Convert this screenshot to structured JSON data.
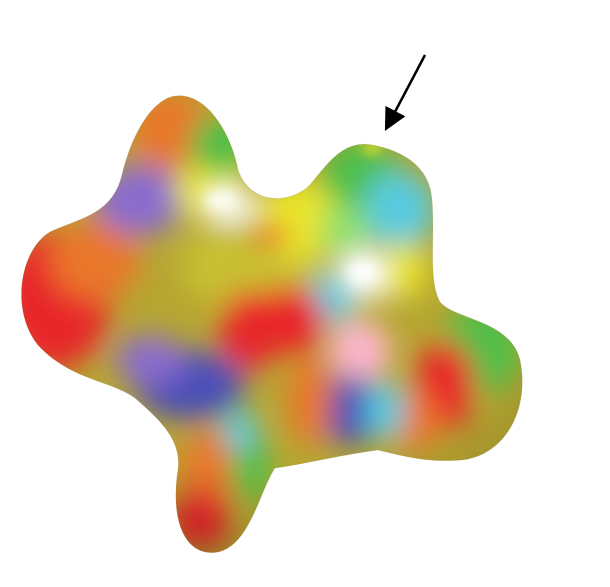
{
  "figure": {
    "subject": "blob-surface",
    "background_color": "#ffffff",
    "palette": {
      "red": "#e8262b",
      "orange": "#e9772a",
      "yellow": "#e9e52a",
      "green": "#4dbf4a",
      "cyan": "#58cbe0",
      "blue": "#4b4fb8",
      "violet": "#8a6ccf",
      "white": "#ffffff",
      "olive": "#a3a032"
    },
    "arrow_color": "#000000"
  }
}
